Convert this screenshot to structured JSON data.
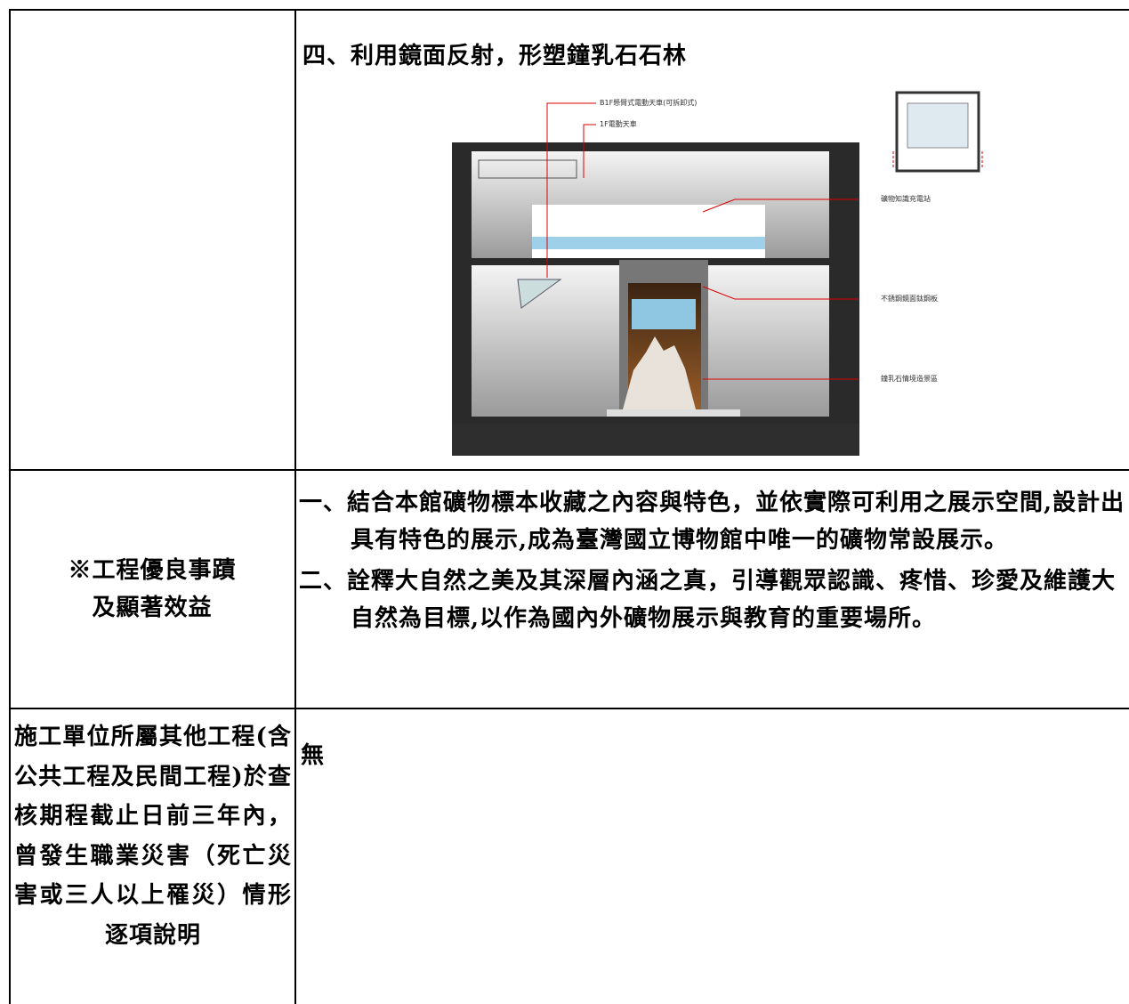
{
  "section4": {
    "title": "四、利用鏡面反射，形塑鐘乳石石林",
    "figure_labels": [
      "B1F懸臂式電動天車(可拆卸式)",
      "1F電動天車",
      "礦物知識充電站",
      "不銹鋼鏡面鈦鋼板",
      "鐘乳石情境造景區"
    ]
  },
  "benefits": {
    "label_lines": [
      "※工程優良事蹟",
      "及顯著效益"
    ],
    "items": [
      {
        "number": "一、",
        "text": "結合本館礦物標本收藏之內容與特色，並依實際可利用之展示空間,設計出具有特色的展示,成為臺灣國立博物館中唯一的礦物常設展示。"
      },
      {
        "number": "二、",
        "text": "詮釋大自然之美及其深層內涵之真，引導觀眾認識、疼惜、珍愛及維護大自然為目標,以作為國內外礦物展示與教育的重要場所。"
      }
    ]
  },
  "accidents": {
    "label": "施工單位所屬其他工程(含公共工程及民間工程)於查核期程截止日前三年內，曾發生職業災害（死亡災害或三人以上罹災）情形逐項說明",
    "value": "無"
  }
}
